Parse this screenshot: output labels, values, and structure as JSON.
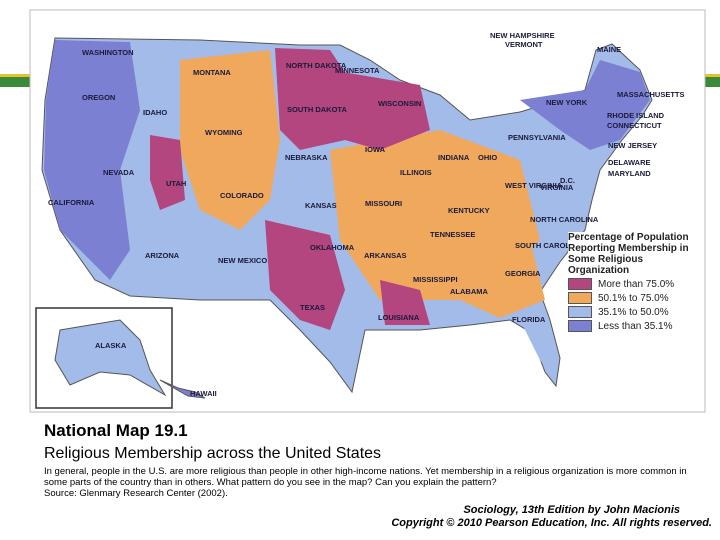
{
  "map": {
    "states": [
      "WASHINGTON",
      "MONTANA",
      "NORTH DAKOTA",
      "MINNESOTA",
      "NEW HAMPSHIRE",
      "VERMONT",
      "MAINE",
      "OREGON",
      "IDAHO",
      "SOUTH DAKOTA",
      "WISCONSIN",
      "NEW YORK",
      "MASSACHUSETTS",
      "RHODE ISLAND",
      "CONNECTICUT",
      "WYOMING",
      "IOWA",
      "PENNSYLVANIA",
      "NEW JERSEY",
      "NEBRASKA",
      "INDIANA",
      "OHIO",
      "DELAWARE",
      "MARYLAND",
      "NEVADA",
      "UTAH",
      "ILLINOIS",
      "CALIFORNIA",
      "COLORADO",
      "KANSAS",
      "MISSOURI",
      "WEST VIRGINIA",
      "VIRGINIA",
      "D.C.",
      "KENTUCKY",
      "NORTH CAROLINA",
      "TENNESSEE",
      "SOUTH CAROLINA",
      "ARIZONA",
      "NEW MEXICO",
      "OKLAHOMA",
      "ARKANSAS",
      "MISSISSIPPI",
      "ALABAMA",
      "GEORGIA",
      "TEXAS",
      "LOUISIANA",
      "FLORIDA",
      "ALASKA",
      "HAWAII"
    ],
    "legend": {
      "title": "Percentage of Population Reporting Membership in Some Religious Organization",
      "items": [
        {
          "label": "More than 75.0%",
          "color": "#b3457f"
        },
        {
          "label": "50.1% to 75.0%",
          "color": "#efa85c"
        },
        {
          "label": "35.1% to 50.0%",
          "color": "#a3bbe8"
        },
        {
          "label": "Less than 35.1%",
          "color": "#7b80d2"
        }
      ]
    }
  },
  "caption": {
    "title": "National Map 19.1",
    "subtitle": "Religious Membership across the United States",
    "text": "In general, people in the U.S. are more religious than people in other high-income nations. Yet membership in a religious organization is more common in some parts of the country than in others. What pattern do you see in the map? Can you explain the pattern?",
    "source": "Source: Glenmary Research Center (2002).",
    "book": "Sociology, 13th Edition by John Macionis",
    "copyright": "Copyright © 2010 Pearson Education, Inc. All rights reserved."
  }
}
